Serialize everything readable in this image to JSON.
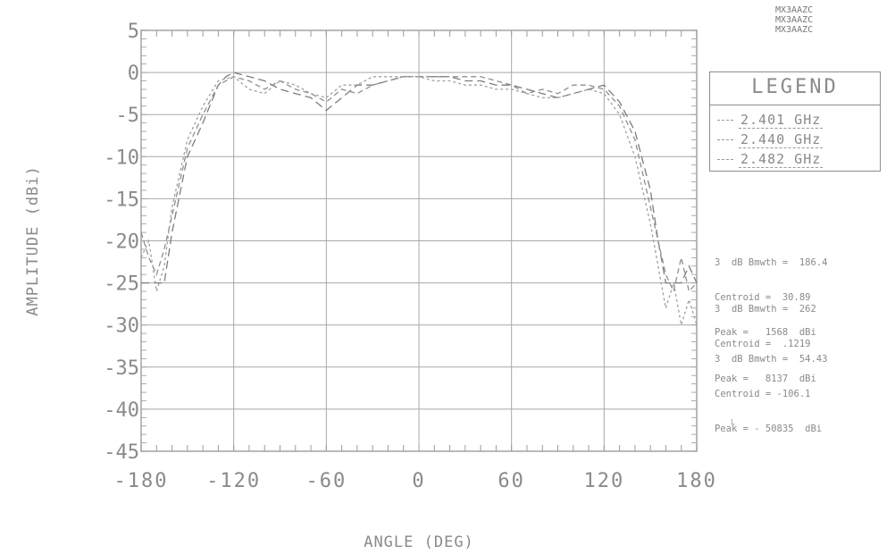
{
  "header_codes": [
    "MX3AAZC",
    "MX3AAZC",
    "MX3AAZC"
  ],
  "legend": {
    "title": "LEGEND",
    "entries": [
      "2.401 GHz",
      "2.440 GHz",
      "2.482 GHz"
    ]
  },
  "stats": [
    {
      "bw": "3  dB Bmwth =  186.4",
      "centroid": "Centroid =  30.89",
      "peak": "Peak =   1568  dBi"
    },
    {
      "bw": "3  dB Bmwth =  262",
      "centroid": "Centroid =  .1219",
      "peak": "Peak =   8137  dBi"
    },
    {
      "bw": "3  dB Bmwth =  54.43",
      "centroid": "Centroid = -106.1",
      "peak": "Peak = - 50835  dBi"
    }
  ],
  "footnote": "L",
  "chart_data": {
    "type": "line",
    "title": "",
    "xlabel": "ANGLE (DEG)",
    "ylabel": "AMPLITUDE (dBi)",
    "xlim": [
      -180,
      180
    ],
    "ylim": [
      -45,
      5
    ],
    "xticks": [
      -180,
      -120,
      -60,
      0,
      60,
      120,
      180
    ],
    "yticks": [
      5,
      0,
      -5,
      -10,
      -15,
      -20,
      -25,
      -30,
      -35,
      -40,
      -45
    ],
    "grid": true,
    "legend_position": "top-right",
    "series": [
      {
        "name": "2.401 GHz",
        "x": [
          -180,
          -175,
          -170,
          -165,
          -160,
          -150,
          -140,
          -130,
          -125,
          -120,
          -110,
          -100,
          -90,
          -80,
          -70,
          -60,
          -50,
          -40,
          -30,
          -20,
          -10,
          0,
          10,
          20,
          30,
          40,
          50,
          60,
          70,
          80,
          90,
          100,
          110,
          120,
          130,
          140,
          150,
          155,
          160,
          165,
          170,
          175,
          180
        ],
        "y": [
          -25,
          -25,
          -25,
          -25,
          -19,
          -10,
          -6,
          -1.5,
          -0.5,
          0,
          -0.5,
          -1,
          -2,
          -2.5,
          -3,
          -4.5,
          -3,
          -1.5,
          -1.5,
          -1,
          -0.5,
          -0.5,
          -0.5,
          -0.5,
          -1,
          -1,
          -1.5,
          -1.5,
          -2,
          -2.5,
          -3,
          -2.5,
          -2,
          -1.5,
          -3.5,
          -7,
          -14,
          -20,
          -25,
          -25,
          -25,
          -23,
          -25
        ]
      },
      {
        "name": "2.440 GHz",
        "x": [
          -180,
          -175,
          -170,
          -165,
          -160,
          -150,
          -140,
          -130,
          -120,
          -110,
          -100,
          -90,
          -80,
          -70,
          -60,
          -50,
          -40,
          -30,
          -20,
          -10,
          0,
          10,
          20,
          30,
          40,
          50,
          60,
          70,
          80,
          90,
          100,
          110,
          120,
          130,
          140,
          150,
          160,
          165,
          170,
          175,
          180
        ],
        "y": [
          -19,
          -22,
          -24,
          -21,
          -17,
          -9,
          -5,
          -1.5,
          -0.5,
          -1,
          -2,
          -1,
          -2,
          -2.5,
          -3.5,
          -2,
          -2.5,
          -1.5,
          -1,
          -0.5,
          -0.5,
          -0.5,
          -0.5,
          -0.5,
          -0.5,
          -1,
          -1.5,
          -2.5,
          -2,
          -2.5,
          -1.5,
          -1.5,
          -2,
          -4,
          -8,
          -16,
          -24,
          -26,
          -22,
          -26,
          -25
        ]
      },
      {
        "name": "2.482 GHz",
        "x": [
          -180,
          -175,
          -170,
          -165,
          -160,
          -150,
          -140,
          -130,
          -120,
          -110,
          -100,
          -90,
          -80,
          -70,
          -60,
          -50,
          -40,
          -30,
          -20,
          -10,
          0,
          10,
          20,
          30,
          40,
          50,
          60,
          70,
          80,
          90,
          100,
          110,
          120,
          130,
          140,
          150,
          160,
          165,
          170,
          175,
          180
        ],
        "y": [
          -22,
          -20,
          -26,
          -23,
          -16,
          -8,
          -4,
          -1,
          -0.5,
          -2,
          -2.5,
          -1,
          -1.5,
          -2.5,
          -3,
          -1.5,
          -1.5,
          -0.5,
          -0.5,
          -0.5,
          -0.5,
          -1,
          -1,
          -1.5,
          -1.5,
          -2,
          -2,
          -2.5,
          -3,
          -3,
          -2.5,
          -2,
          -2.5,
          -5,
          -10,
          -18,
          -28,
          -25,
          -30,
          -27,
          -30
        ]
      }
    ]
  }
}
